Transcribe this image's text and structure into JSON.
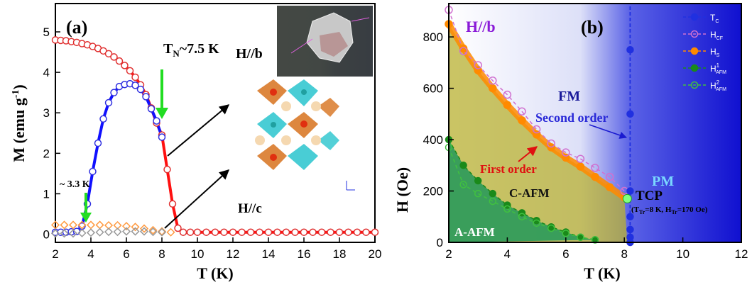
{
  "chart_data": [
    {
      "type": "scatter",
      "panel_label": "(a)",
      "xlabel": "T (K)",
      "ylabel_main": "M (emu g",
      "ylabel_sup": "-1",
      "ylabel_close": ")",
      "xlim": [
        2,
        20
      ],
      "ylim": [
        -0.2,
        5.7
      ],
      "xticks": [
        "2",
        "4",
        "6",
        "8",
        "10",
        "12",
        "14",
        "16",
        "18",
        "20"
      ],
      "yticks": [
        "0",
        "1",
        "2",
        "3",
        "4",
        "5"
      ],
      "annotations": {
        "tn_main": "T",
        "tn_sub": "N",
        "tn_rest": "~7.5 K",
        "t33": "~ 3.3 K",
        "hb": "H//b",
        "hc": "H//c"
      },
      "colors": {
        "hb_marker": "#e03030",
        "hc_marker": "#ff9a40",
        "zfc_marker": "#3030e0",
        "zfc_line": "#1010ff",
        "fc_line": "#ff1010",
        "arrow": "#22dd22"
      },
      "series": [
        {
          "role": "hb-fc",
          "color": "#e03030",
          "x": [
            2.0,
            2.3,
            2.6,
            2.9,
            3.2,
            3.5,
            3.8,
            4.1,
            4.4,
            4.7,
            5.0,
            5.3,
            5.6,
            5.9,
            6.2,
            6.5,
            6.8,
            7.1,
            7.4,
            7.7,
            8.0,
            8.3,
            8.6,
            8.9,
            9.2,
            9.6,
            10.0,
            10.5,
            11.0,
            11.5,
            12.0,
            12.5,
            13.0,
            13.5,
            14.0,
            14.5,
            15.0,
            15.5,
            16.0,
            16.5,
            17.0,
            17.5,
            18.0,
            18.5,
            19.0,
            19.5,
            20.0
          ],
          "y": [
            4.8,
            4.79,
            4.78,
            4.76,
            4.74,
            4.71,
            4.68,
            4.64,
            4.59,
            4.53,
            4.46,
            4.38,
            4.28,
            4.17,
            4.04,
            3.88,
            3.69,
            3.45,
            3.12,
            2.75,
            2.45,
            1.6,
            0.75,
            0.15,
            0.05,
            0.05,
            0.05,
            0.05,
            0.05,
            0.05,
            0.05,
            0.05,
            0.05,
            0.05,
            0.05,
            0.05,
            0.05,
            0.05,
            0.05,
            0.05,
            0.05,
            0.05,
            0.05,
            0.05,
            0.05,
            0.05,
            0.05
          ]
        },
        {
          "role": "hb-zfc",
          "color": "#3030e0",
          "x": [
            2.0,
            2.3,
            2.6,
            2.9,
            3.2,
            3.5,
            3.8,
            4.1,
            4.4,
            4.7,
            5.0,
            5.3,
            5.6,
            5.9,
            6.2,
            6.5,
            6.8,
            7.1,
            7.4,
            7.7,
            8.0
          ],
          "y": [
            0.05,
            0.05,
            0.05,
            0.06,
            0.07,
            0.2,
            0.75,
            1.55,
            2.25,
            2.85,
            3.25,
            3.5,
            3.65,
            3.7,
            3.72,
            3.68,
            3.58,
            3.4,
            3.1,
            2.8,
            2.4
          ]
        },
        {
          "role": "hc-fc",
          "color": "#ff9a40",
          "x": [
            2.0,
            2.5,
            3.0,
            3.5,
            4.0,
            4.5,
            5.0,
            5.5,
            6.0,
            6.5,
            7.0,
            7.5,
            8.0,
            8.5
          ],
          "y": [
            0.23,
            0.23,
            0.23,
            0.23,
            0.23,
            0.23,
            0.22,
            0.22,
            0.2,
            0.18,
            0.14,
            0.1,
            0.07,
            0.05
          ]
        },
        {
          "role": "hc-zfc",
          "color": "#999999",
          "x": [
            2.0,
            2.5,
            3.0,
            3.5,
            4.0,
            4.5,
            5.0,
            5.5,
            6.0,
            6.5,
            7.0,
            7.5,
            8.0
          ],
          "y": [
            0.02,
            0.02,
            0.02,
            0.03,
            0.04,
            0.05,
            0.06,
            0.06,
            0.07,
            0.07,
            0.07,
            0.06,
            0.05
          ]
        }
      ]
    },
    {
      "type": "scatter",
      "panel_label": "(b)",
      "xlabel": "T (K)",
      "ylabel": "H (Oe)",
      "xlim": [
        2,
        12
      ],
      "ylim": [
        0,
        930
      ],
      "xticks": [
        "2",
        "4",
        "6",
        "8",
        "10",
        "12"
      ],
      "yticks": [
        "0",
        "200",
        "400",
        "600",
        "800"
      ],
      "regions": {
        "hb": "H//b",
        "fm": "FM",
        "pm": "PM",
        "cafm": "C-AFM",
        "aafm": "A-AFM",
        "second_order": "Second order",
        "first_order": "First order",
        "tcp": "TCP",
        "tcp_detail": "(T",
        "tcp_sub1": "Tr",
        "tcp_detail2": "=8 K, H",
        "tcp_sub2": "Tr",
        "tcp_detail3": "=170 Oe)"
      },
      "legend": [
        {
          "main": "T",
          "sub": "C",
          "sup": ""
        },
        {
          "main": "H",
          "sub": "CF",
          "sup": ""
        },
        {
          "main": "H",
          "sub": "S",
          "sup": ""
        },
        {
          "main": "H",
          "sub": "AFM",
          "sup": "1"
        },
        {
          "main": "H",
          "sub": "AFM",
          "sup": "2"
        }
      ],
      "colors": {
        "tc": "#2030e0",
        "hcf": "#d070d0",
        "hs": "#ff8a00",
        "hafm1": "#1a8a1a",
        "hafm2": "#40c040",
        "tcp": "#80ff80"
      },
      "series": [
        {
          "role": "Tc",
          "x": [
            8.2,
            8.2,
            8.2,
            8.2,
            8.2,
            8.2,
            8.2
          ],
          "y": [
            750,
            500,
            200,
            100,
            50,
            20,
            0
          ]
        },
        {
          "role": "Hcf",
          "x": [
            2.0,
            2.5,
            3.0,
            3.5,
            4.0,
            4.5,
            5.0,
            5.5,
            6.0,
            6.5,
            7.0,
            7.5,
            8.0
          ],
          "y": [
            905,
            745,
            690,
            630,
            575,
            510,
            440,
            385,
            350,
            325,
            290,
            255,
            200
          ]
        },
        {
          "role": "Hs",
          "x": [
            2.0,
            2.5,
            3.0,
            3.5,
            4.0,
            4.5,
            5.0,
            5.5,
            6.0,
            6.5,
            7.0,
            7.5,
            8.0
          ],
          "y": [
            850,
            755,
            670,
            600,
            535,
            475,
            420,
            370,
            330,
            295,
            255,
            215,
            175
          ]
        },
        {
          "role": "Hafm1",
          "x": [
            2.0,
            2.5,
            3.0,
            3.5,
            4.0,
            4.5,
            5.0,
            5.5,
            6.0,
            6.5,
            7.0
          ],
          "y": [
            400,
            300,
            240,
            190,
            145,
            115,
            85,
            60,
            40,
            20,
            10
          ]
        },
        {
          "role": "Hafm2",
          "x": [
            2.0,
            2.5,
            3.0,
            3.5,
            4.0,
            4.5,
            5.0,
            5.5,
            6.0,
            6.5,
            7.0
          ],
          "y": [
            370,
            225,
            190,
            160,
            130,
            100,
            75,
            55,
            35,
            20,
            10
          ]
        },
        {
          "role": "TCP",
          "x": [
            8.1
          ],
          "y": [
            170
          ]
        }
      ]
    }
  ]
}
